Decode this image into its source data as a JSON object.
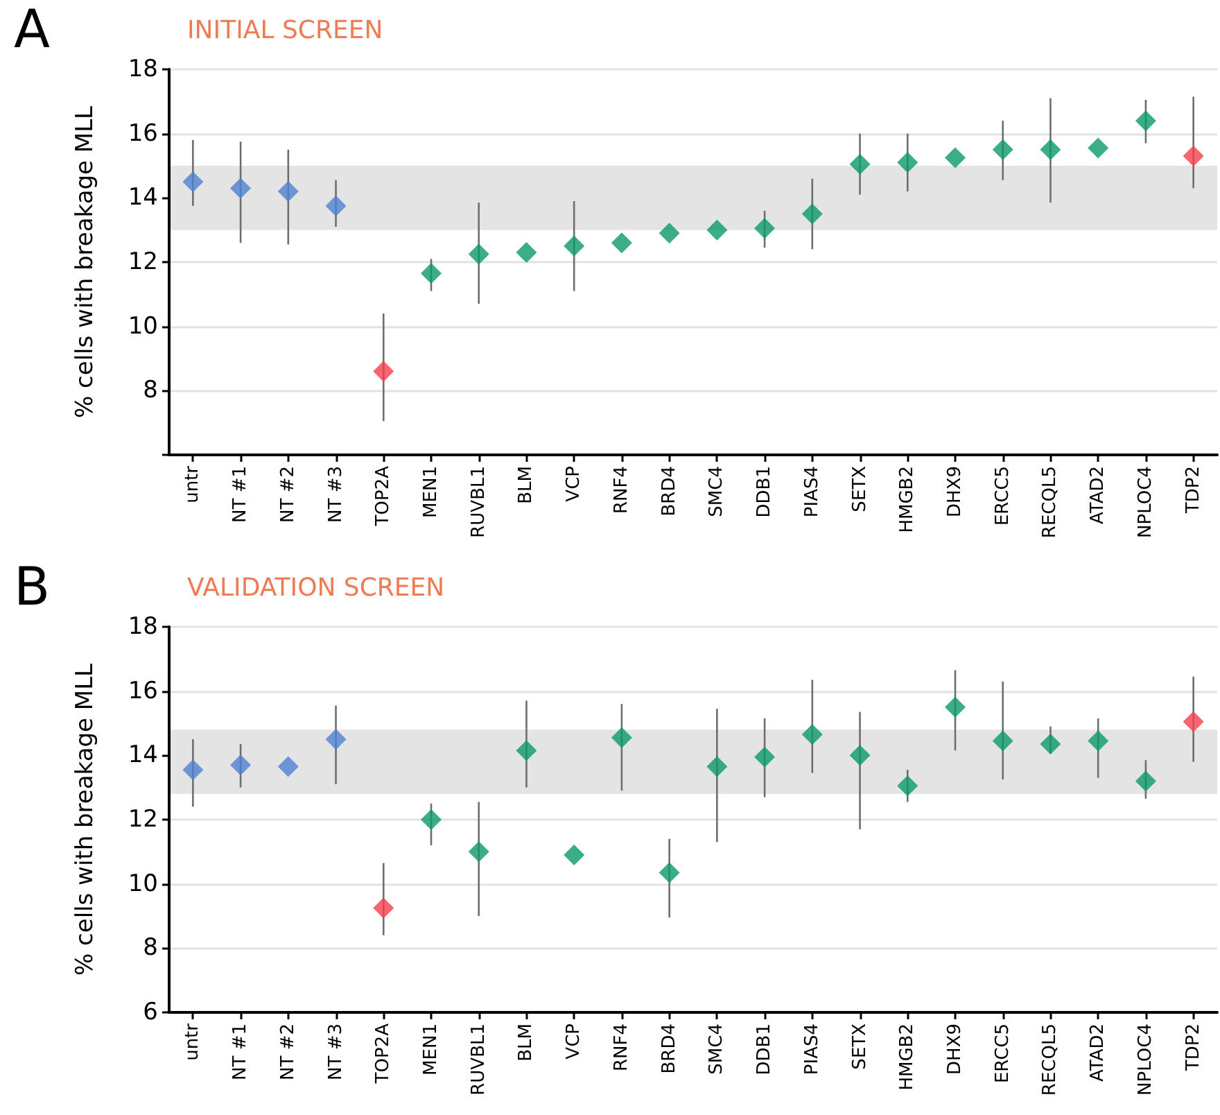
{
  "chart_data": [
    {
      "type": "scatter",
      "title": "INITIAL SCREEN",
      "ylabel": "% cells with breakage MLL",
      "annotations": [
        "A"
      ],
      "categories": [
        "untr",
        "NT #1",
        "NT #2",
        "NT #3",
        "TOP2A",
        "MEN1",
        "RUVBL1",
        "BLM",
        "VCP",
        "RNF4",
        "BRD4",
        "SMC4",
        "DDB1",
        "PIAS4",
        "SETX",
        "HMGB2",
        "DHX9",
        "ERCC5",
        "RECQL5",
        "ATAD2",
        "NPLOC4",
        "TDP2"
      ],
      "series": [
        {
          "values": [
            14.5,
            14.3,
            14.2,
            13.75,
            8.6,
            11.65,
            12.25,
            12.3,
            12.5,
            12.6,
            12.9,
            13.0,
            13.05,
            13.5,
            15.05,
            15.1,
            15.25,
            15.5,
            15.5,
            15.55,
            16.4,
            15.3
          ],
          "colors": [
            "#4f7fcf",
            "#4f7fcf",
            "#4f7fcf",
            "#4f7fcf",
            "#f5404c",
            "#0b9a66",
            "#0b9a66",
            "#0b9a66",
            "#0b9a66",
            "#0b9a66",
            "#0b9a66",
            "#0b9a66",
            "#0b9a66",
            "#0b9a66",
            "#0b9a66",
            "#0b9a66",
            "#0b9a66",
            "#0b9a66",
            "#0b9a66",
            "#0b9a66",
            "#0b9a66",
            "#f5404c"
          ],
          "errors": [
            [
              13.75,
              15.8
            ],
            [
              12.6,
              15.75
            ],
            [
              12.55,
              15.5
            ],
            [
              13.1,
              14.55
            ],
            [
              7.05,
              10.4
            ],
            [
              11.1,
              12.1
            ],
            [
              10.7,
              13.85
            ],
            null,
            [
              11.1,
              13.9
            ],
            null,
            null,
            null,
            [
              12.45,
              13.6
            ],
            [
              12.4,
              14.6
            ],
            [
              14.1,
              16.0
            ],
            [
              14.2,
              16.0
            ],
            null,
            [
              14.55,
              16.4
            ],
            [
              13.85,
              17.1
            ],
            null,
            [
              15.7,
              17.05
            ],
            [
              14.3,
              17.15
            ]
          ]
        }
      ],
      "ylim": [
        6,
        18
      ],
      "yticks": [
        {
          "value": 6,
          "label": null
        },
        8,
        10,
        12,
        14,
        16,
        18
      ],
      "bands": [
        {
          "axis": "y",
          "from": 13,
          "to": 15,
          "color": "#e4e4e4"
        }
      ],
      "grid": "y",
      "marker": "diamond"
    },
    {
      "type": "scatter",
      "title": "VALIDATION SCREEN",
      "ylabel": "% cells with breakage MLL",
      "annotations": [
        "B"
      ],
      "categories": [
        "untr",
        "NT #1",
        "NT #2",
        "NT #3",
        "TOP2A",
        "MEN1",
        "RUVBL1",
        "BLM",
        "VCP",
        "RNF4",
        "BRD4",
        "SMC4",
        "DDB1",
        "PIAS4",
        "SETX",
        "HMGB2",
        "DHX9",
        "ERCC5",
        "RECQL5",
        "ATAD2",
        "NPLOC4",
        "TDP2"
      ],
      "series": [
        {
          "values": [
            13.55,
            13.7,
            13.65,
            14.5,
            9.25,
            12.0,
            11.0,
            14.15,
            10.9,
            14.55,
            10.35,
            13.65,
            13.95,
            14.65,
            14.0,
            13.05,
            15.5,
            14.45,
            14.35,
            14.45,
            13.2,
            15.05
          ],
          "colors": [
            "#4f7fcf",
            "#4f7fcf",
            "#4f7fcf",
            "#4f7fcf",
            "#f5404c",
            "#0b9a66",
            "#0b9a66",
            "#0b9a66",
            "#0b9a66",
            "#0b9a66",
            "#0b9a66",
            "#0b9a66",
            "#0b9a66",
            "#0b9a66",
            "#0b9a66",
            "#0b9a66",
            "#0b9a66",
            "#0b9a66",
            "#0b9a66",
            "#0b9a66",
            "#0b9a66",
            "#f5404c"
          ],
          "errors": [
            [
              12.4,
              14.5
            ],
            [
              13.0,
              14.35
            ],
            null,
            [
              13.1,
              15.55
            ],
            [
              8.4,
              10.65
            ],
            [
              11.2,
              12.5
            ],
            [
              9.0,
              12.55
            ],
            [
              13.0,
              15.7
            ],
            null,
            [
              12.9,
              15.6
            ],
            [
              8.95,
              11.4
            ],
            [
              11.3,
              15.45
            ],
            [
              12.7,
              15.15
            ],
            [
              13.45,
              16.35
            ],
            [
              11.7,
              15.35
            ],
            [
              12.55,
              13.55
            ],
            [
              14.15,
              16.65
            ],
            [
              13.25,
              16.3
            ],
            [
              14.05,
              14.9
            ],
            [
              13.3,
              15.15
            ],
            [
              12.65,
              13.85
            ],
            [
              13.8,
              16.45
            ]
          ]
        }
      ],
      "ylim": [
        6,
        18
      ],
      "yticks": [
        6,
        8,
        10,
        12,
        14,
        16,
        18
      ],
      "bands": [
        {
          "axis": "y",
          "from": 12.8,
          "to": 14.8,
          "color": "#e4e4e4"
        }
      ],
      "grid": "y",
      "marker": "diamond"
    }
  ]
}
